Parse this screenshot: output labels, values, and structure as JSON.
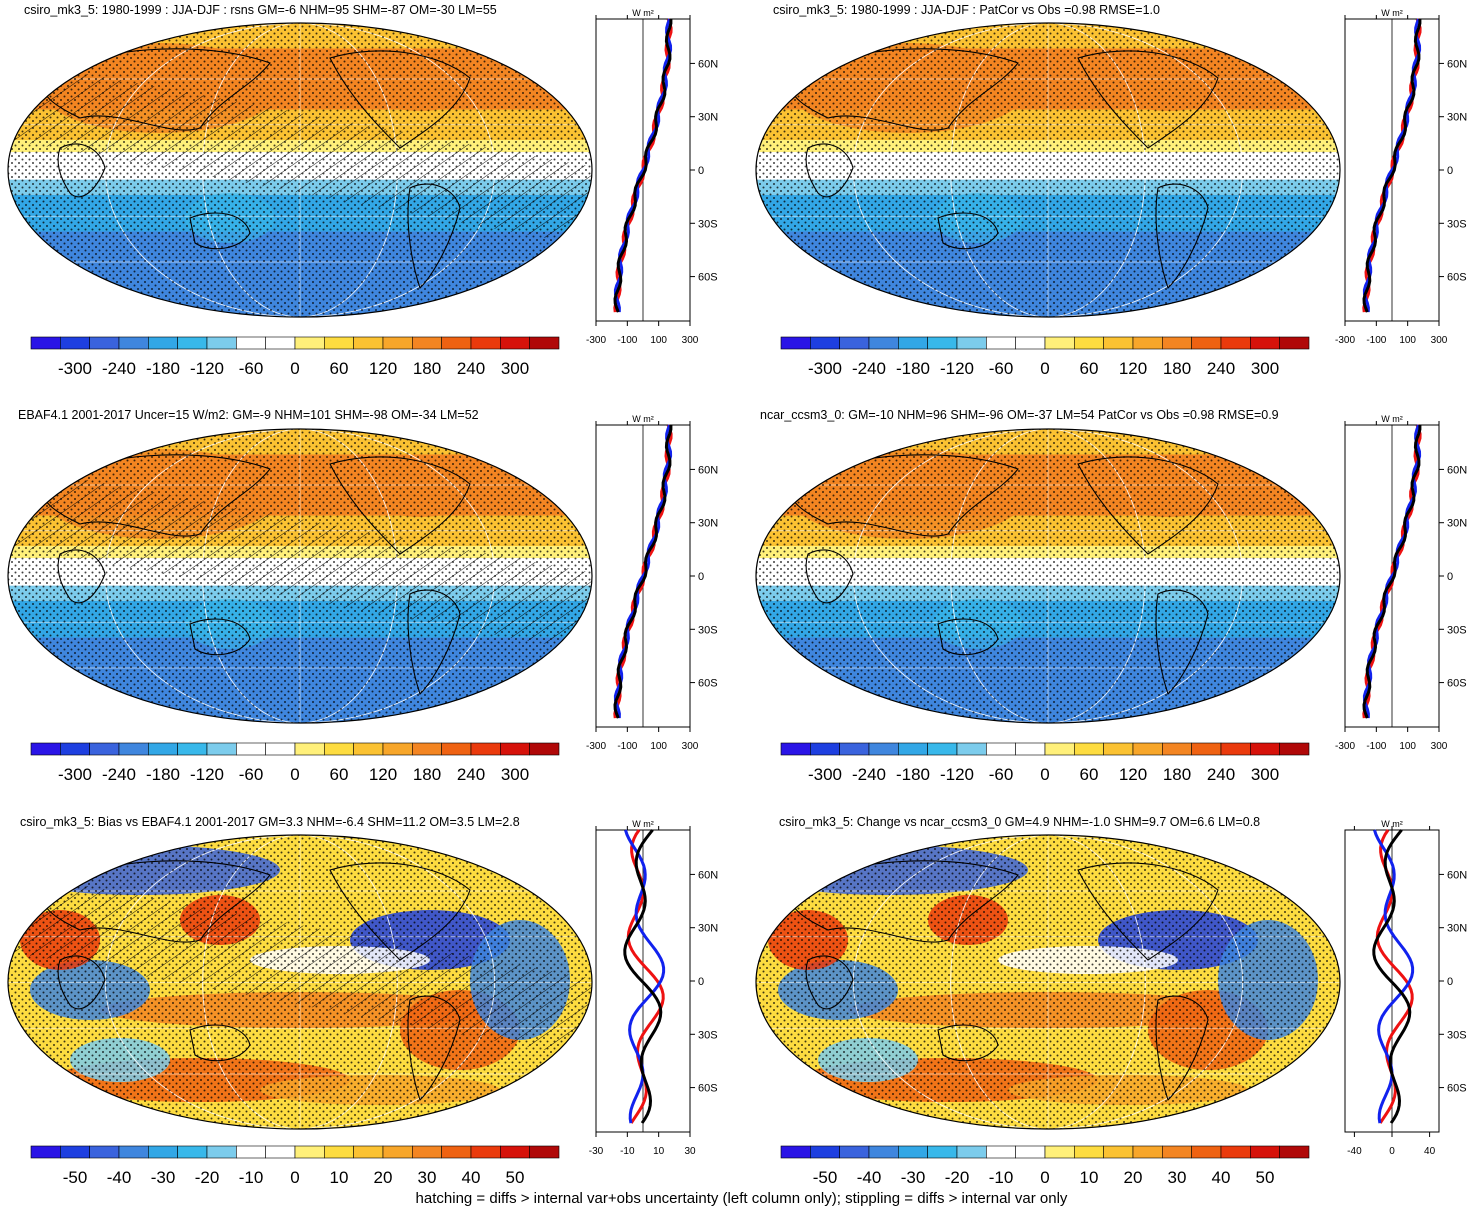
{
  "panels": [
    {
      "title": "csiro_mk3_5: 1980-1999 : JJA-DJF : rsns GM=-6 NHM=95 SHM=-87 OM=-30 LM=55",
      "style": "mean",
      "hatch": true,
      "colorbar_labels": [
        "-300",
        "-240",
        "-180",
        "-120",
        "-60",
        "0",
        "60",
        "120",
        "180",
        "240",
        "300"
      ],
      "zonal_x_ticks": [
        "-300",
        "-100",
        "100",
        "300"
      ],
      "zonal_x_range": [
        -300,
        300
      ]
    },
    {
      "title": "csiro_mk3_5: 1980-1999 : JJA-DJF : PatCor vs Obs =0.98 RMSE=1.0",
      "style": "mean",
      "hatch": false,
      "colorbar_labels": [
        "-300",
        "-240",
        "-180",
        "-120",
        "-60",
        "0",
        "60",
        "120",
        "180",
        "240",
        "300"
      ],
      "zonal_x_ticks": [
        "-300",
        "-100",
        "100",
        "300"
      ],
      "zonal_x_range": [
        -300,
        300
      ]
    },
    {
      "title": "EBAF4.1 2001-2017 Uncer=15 W/m2: GM=-9 NHM=101 SHM=-98 OM=-34 LM=52",
      "style": "mean",
      "hatch": true,
      "colorbar_labels": [
        "-300",
        "-240",
        "-180",
        "-120",
        "-60",
        "0",
        "60",
        "120",
        "180",
        "240",
        "300"
      ],
      "zonal_x_ticks": [
        "-300",
        "-100",
        "100",
        "300"
      ],
      "zonal_x_range": [
        -300,
        300
      ]
    },
    {
      "title": "ncar_ccsm3_0: GM=-10 NHM=96 SHM=-96 OM=-37 LM=54 PatCor vs Obs =0.98 RMSE=0.9",
      "style": "mean",
      "hatch": false,
      "colorbar_labels": [
        "-300",
        "-240",
        "-180",
        "-120",
        "-60",
        "0",
        "60",
        "120",
        "180",
        "240",
        "300"
      ],
      "zonal_x_ticks": [
        "-300",
        "-100",
        "100",
        "300"
      ],
      "zonal_x_range": [
        -300,
        300
      ]
    },
    {
      "title": "csiro_mk3_5: Bias vs EBAF4.1 2001-2017 GM=3.3 NHM=-6.4 SHM=11.2 OM=3.5 LM=2.8",
      "style": "diff",
      "hatch": true,
      "colorbar_labels": [
        "-50",
        "-40",
        "-30",
        "-20",
        "-10",
        "0",
        "10",
        "20",
        "30",
        "40",
        "50"
      ],
      "zonal_x_ticks": [
        "-30",
        "-10",
        "10",
        "30"
      ],
      "zonal_x_range": [
        -30,
        30
      ]
    },
    {
      "title": "csiro_mk3_5: Change vs ncar_ccsm3_0 GM=4.9 NHM=-1.0 SHM=9.7 OM=6.6 LM=0.8",
      "style": "diff",
      "hatch": false,
      "colorbar_labels": [
        "-50",
        "-40",
        "-30",
        "-20",
        "-10",
        "0",
        "10",
        "20",
        "30",
        "40",
        "50"
      ],
      "zonal_x_ticks": [
        "-40",
        "0",
        "40"
      ],
      "zonal_x_range": [
        -50,
        50
      ]
    }
  ],
  "zonal_y_labels": [
    "60N",
    "30N",
    "0",
    "30S",
    "60S"
  ],
  "zonal_y_values": [
    60,
    30,
    0,
    -30,
    -60
  ],
  "zonal_units": "W m²",
  "colors": {
    "levels": [
      "#2a14e6",
      "#1e3fe0",
      "#3a63dd",
      "#3f86de",
      "#32a7e6",
      "#38b8ea",
      "#7cccec",
      "#ffffff",
      "#ffffff",
      "#fff07a",
      "#fddc40",
      "#fbc232",
      "#f7a62a",
      "#f38522",
      "#ef6212",
      "#ea3a0c",
      "#d6120a",
      "#b00808"
    ],
    "obs_line": "#ee1111",
    "model_line": "#1122ee",
    "mean_line": "#000000"
  },
  "footer": "hatching = diffs > internal var+obs uncertainty (left column only); stippling = diffs > internal var only"
}
